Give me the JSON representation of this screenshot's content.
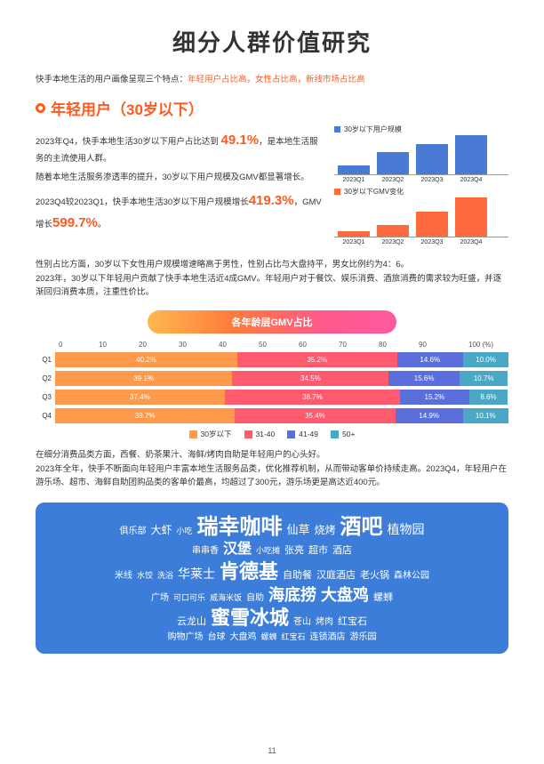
{
  "title": "细分人群价值研究",
  "subtitle_prefix": "快手本地生活的用户画像呈现三个特点：",
  "subtitle_hl": "年轻用户占比高，女性占比高，新线市场占比高",
  "section_title": "年轻用户（30岁以下）",
  "p1_a": "2023年Q4，快手本地生活30岁以下用户占比达到",
  "p1_pct": "49.1%",
  "p1_b": "，是本地生活服务的主流使用人群。",
  "p2": "随着本地生活服务渗透率的提升，30岁以下用户规模及GMV都显著增长。",
  "p3_a": "2023Q4较2023Q1，快手本地生活30岁以下用户规模",
  "p3_g1_label": "增长",
  "p3_g1": "419.3%",
  "p3_mid": "，GMV",
  "p3_g2_label": "增长",
  "p3_g2": "599.7%",
  "p3_end": "。",
  "mini1": {
    "legend": "30岁以下用户规模",
    "color": "#4a7bd4",
    "quarters": [
      "2023Q1",
      "2023Q2",
      "2023Q3",
      "2023Q4"
    ],
    "heights": [
      10,
      25,
      34,
      44
    ]
  },
  "mini2": {
    "legend": "30岁以下GMV变化",
    "color": "#ff6a3c",
    "quarters": [
      "2023Q1",
      "2023Q2",
      "2023Q3",
      "2023Q4"
    ],
    "heights": [
      6,
      13,
      28,
      44
    ]
  },
  "para2_l1": "性别占比方面，30岁以下女性用户规模增速略高于男性，性别占比与大盘持平，男女比例约为4：6。",
  "para2_l2": "2023年，30岁以下年轻用户贡献了快手本地生活近4成GMV。年轻用户对于餐饮、娱乐消费、酒旅消费的需求较为旺盛，并逐渐回归消费本质，注重性价比。",
  "pill": "各年龄层GMV占比",
  "axis": [
    "0",
    "10",
    "20",
    "30",
    "40",
    "50",
    "60",
    "70",
    "80",
    "90",
    "100 (%)"
  ],
  "stacked": {
    "colors": [
      "#ff9a4d",
      "#ff5a6e",
      "#5a6edc",
      "#4aa8c4"
    ],
    "rows": [
      {
        "label": "Q1",
        "vals": [
          40.2,
          35.2,
          14.6,
          10.0
        ]
      },
      {
        "label": "Q2",
        "vals": [
          39.1,
          34.5,
          15.6,
          10.7
        ]
      },
      {
        "label": "Q3",
        "vals": [
          37.4,
          38.7,
          15.2,
          8.6
        ]
      },
      {
        "label": "Q4",
        "vals": [
          39.7,
          35.4,
          14.9,
          10.1
        ]
      }
    ],
    "legend": [
      "30岁以下",
      "31-40",
      "41-49",
      "50+"
    ]
  },
  "para3_l1": "在细分消费品类方面，西餐、奶茶果汁、海鲜/烤肉自助是年轻用户的心头好。",
  "para3_l2": "2023年全年，快手不断面向年轻用户丰富本地生活服务品类，优化推荐机制，从而带动客单价持续走高。2023Q4，年轻用户在游乐场、超市、海鲜自助团购品类的客单价最高，均超过了300元，游乐场更是高达近400元。",
  "cloud_rows": [
    [
      [
        "俱乐部",
        10
      ],
      [
        "大虾",
        12
      ],
      [
        "小吃",
        9
      ],
      [
        "瑞幸咖啡",
        24
      ],
      [
        "仙草",
        13
      ],
      [
        "烧烤",
        12
      ],
      [
        "酒吧",
        24
      ],
      [
        "植物园",
        14
      ]
    ],
    [
      [
        "串串香",
        10
      ],
      [
        "汉堡",
        16
      ],
      [
        "小吃摊",
        9
      ],
      [
        "张亮",
        11
      ],
      [
        "超市",
        11
      ],
      [
        "酒店",
        11
      ]
    ],
    [
      [
        "米线",
        10
      ],
      [
        "水饺",
        9
      ],
      [
        "洗浴",
        9
      ],
      [
        "华莱士",
        14
      ],
      [
        "肯德基",
        22
      ],
      [
        "自助餐",
        11
      ],
      [
        "汉庭酒店",
        11
      ],
      [
        "老火锅",
        11
      ],
      [
        "森林公园",
        10
      ]
    ],
    [
      [
        "广场",
        10
      ],
      [
        "可口可乐",
        9
      ],
      [
        "威海米饭",
        9
      ],
      [
        "自助",
        10
      ],
      [
        "海底捞",
        18
      ],
      [
        "大盘鸡",
        18
      ],
      [
        "螺蛳",
        11
      ]
    ],
    [
      [
        "云龙山",
        11
      ],
      [
        "蜜雪冰城",
        22
      ],
      [
        "苍山",
        10
      ],
      [
        "烤肉",
        10
      ],
      [
        "红宝石",
        11
      ]
    ],
    [
      [
        "购物广场",
        10
      ],
      [
        "台球",
        10
      ],
      [
        "大盘鸡",
        10
      ],
      [
        "螺蛳",
        9
      ],
      [
        "红宝石",
        9
      ],
      [
        "连锁酒店",
        10
      ],
      [
        "游乐园",
        10
      ]
    ]
  ],
  "page": "11"
}
